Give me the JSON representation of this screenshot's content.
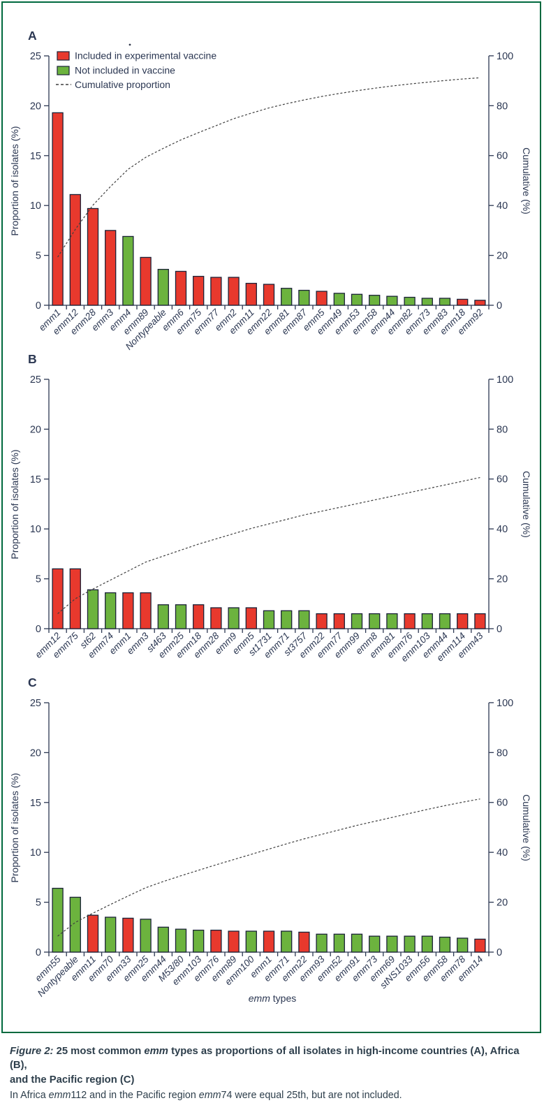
{
  "figure": {
    "panel_labels": [
      "A",
      "B",
      "C"
    ],
    "legend": {
      "included": "Included in experimental vaccine",
      "not_included": "Not included in vaccine",
      "cumulative": "Cumulative proportion"
    },
    "axis": {
      "y_left_label": "Proportion of isolates (%)",
      "y_right_label": "Cumulative (%)",
      "x_label_italic": "emm",
      "x_label_rest": " types",
      "y_left_ticks": [
        0,
        5,
        10,
        15,
        20,
        25
      ],
      "y_right_ticks": [
        0,
        20,
        40,
        60,
        80,
        100
      ]
    },
    "colors": {
      "included": "#e8392d",
      "not_included": "#6cb33e",
      "bar_outline": "#1b2238",
      "ink": "#2b3752",
      "border": "#00693e",
      "dashed_line": "#3f3f3f"
    }
  },
  "chart_data": [
    {
      "panel": "A",
      "region": "high-income countries",
      "type": "bar",
      "ylabel": "Proportion of isolates (%)",
      "y2label": "Cumulative (%)",
      "ylim": [
        0,
        25
      ],
      "y2lim": [
        0,
        100
      ],
      "legend_position": "top-left",
      "grid": false,
      "categories": [
        "emm1",
        "emm12",
        "emm28",
        "emm3",
        "emm4",
        "emm89",
        "Nontypeable",
        "emm6",
        "emm75",
        "emm77",
        "emm2",
        "emm11",
        "emm22",
        "emm81",
        "emm87",
        "emm5",
        "emm49",
        "emm53",
        "emm58",
        "emm44",
        "emm82",
        "emm73",
        "emm83",
        "emm18",
        "emm92"
      ],
      "values": [
        19.3,
        11.1,
        9.7,
        7.5,
        6.9,
        4.8,
        3.6,
        3.4,
        2.9,
        2.8,
        2.8,
        2.2,
        2.1,
        1.7,
        1.5,
        1.4,
        1.2,
        1.1,
        1.0,
        0.9,
        0.8,
        0.7,
        0.7,
        0.6,
        0.5
      ],
      "included_in_vaccine": [
        true,
        true,
        true,
        true,
        false,
        true,
        false,
        true,
        true,
        true,
        true,
        true,
        true,
        false,
        false,
        true,
        false,
        false,
        false,
        false,
        false,
        false,
        false,
        true,
        true
      ],
      "cumulative": [
        19.3,
        30.4,
        40.1,
        47.6,
        54.5,
        59.3,
        62.9,
        66.3,
        69.2,
        72.0,
        74.8,
        77.0,
        79.1,
        80.8,
        82.3,
        83.7,
        84.9,
        86.0,
        87.0,
        87.9,
        88.7,
        89.4,
        90.1,
        90.7,
        91.2
      ]
    },
    {
      "panel": "B",
      "region": "Africa",
      "type": "bar",
      "ylabel": "Proportion of isolates (%)",
      "y2label": "Cumulative (%)",
      "ylim": [
        0,
        25
      ],
      "y2lim": [
        0,
        100
      ],
      "grid": false,
      "categories": [
        "emm12",
        "emm75",
        "st62",
        "emm74",
        "emm1",
        "emm3",
        "st463",
        "emm25",
        "emm18",
        "emm28",
        "emm9",
        "emm5",
        "st1731",
        "emm71",
        "st3757",
        "emm22",
        "emm77",
        "emm99",
        "emm8",
        "emm81",
        "emm76",
        "emm103",
        "emm44",
        "emm114",
        "emm43"
      ],
      "values": [
        6.0,
        6.0,
        3.9,
        3.6,
        3.6,
        3.6,
        2.4,
        2.4,
        2.4,
        2.1,
        2.1,
        2.1,
        1.8,
        1.8,
        1.8,
        1.5,
        1.5,
        1.5,
        1.5,
        1.5,
        1.5,
        1.5,
        1.5,
        1.5,
        1.5
      ],
      "included_in_vaccine": [
        true,
        true,
        false,
        false,
        true,
        true,
        false,
        false,
        true,
        true,
        false,
        true,
        false,
        false,
        false,
        true,
        true,
        false,
        false,
        false,
        true,
        false,
        false,
        true,
        true
      ],
      "cumulative": [
        6.0,
        12.0,
        15.9,
        19.5,
        23.1,
        26.7,
        29.1,
        31.5,
        33.9,
        36.0,
        38.1,
        40.2,
        42.0,
        43.8,
        45.6,
        47.1,
        48.6,
        50.1,
        51.6,
        53.1,
        54.6,
        56.1,
        57.6,
        59.1,
        60.6
      ]
    },
    {
      "panel": "C",
      "region": "the Pacific region",
      "type": "bar",
      "ylabel": "Proportion of isolates (%)",
      "y2label": "Cumulative (%)",
      "ylim": [
        0,
        25
      ],
      "y2lim": [
        0,
        100
      ],
      "grid": false,
      "categories": [
        "emm55",
        "Nontypeable",
        "emm11",
        "emm70",
        "emm33",
        "emm25",
        "emm44",
        "M53/80",
        "emm103",
        "emm76",
        "emm89",
        "emm100",
        "emm1",
        "emm71",
        "emm22",
        "emm93",
        "emm52",
        "emm91",
        "emm73",
        "emm69",
        "stNS1033",
        "emm56",
        "emm58",
        "emm78",
        "emm14"
      ],
      "values": [
        6.4,
        5.5,
        3.7,
        3.5,
        3.4,
        3.3,
        2.5,
        2.3,
        2.2,
        2.2,
        2.1,
        2.1,
        2.1,
        2.1,
        2.0,
        1.8,
        1.8,
        1.8,
        1.6,
        1.6,
        1.6,
        1.6,
        1.5,
        1.4,
        1.3
      ],
      "included_in_vaccine": [
        false,
        false,
        true,
        false,
        true,
        false,
        false,
        false,
        false,
        true,
        true,
        false,
        true,
        false,
        true,
        false,
        false,
        false,
        false,
        false,
        false,
        false,
        false,
        false,
        true
      ],
      "cumulative": [
        6.4,
        11.9,
        15.6,
        19.1,
        22.5,
        25.8,
        28.3,
        30.6,
        32.8,
        35.0,
        37.1,
        39.2,
        41.3,
        43.4,
        45.4,
        47.2,
        49.0,
        50.8,
        52.4,
        54.0,
        55.6,
        57.2,
        58.7,
        60.1,
        61.4
      ]
    }
  ],
  "caption": {
    "label": "Figure 2:",
    "t1": " 25 most common ",
    "t2": "emm",
    "t3": " types as proportions of all isolates in high-income countries (A), Africa (B),",
    "t4": "and  the Pacific region (C)",
    "note1": "In Africa ",
    "note2": "emm",
    "note3": "112 and in the Pacific region ",
    "note4": "emm",
    "note5": "74 were equal 25th, but are not included."
  }
}
